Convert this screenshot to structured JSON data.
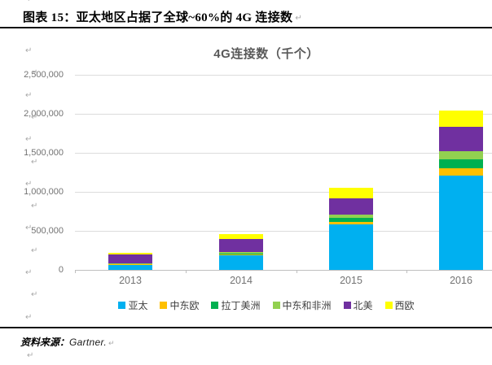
{
  "header": {
    "title": "图表 15：亚太地区占据了全球~60%的 4G 连接数"
  },
  "chart_data": {
    "type": "bar",
    "stacked": true,
    "title": "4G连接数（千个）",
    "xlabel": "",
    "ylabel": "",
    "categories": [
      "2013",
      "2014",
      "2015",
      "2016"
    ],
    "series": [
      {
        "name": "亚太",
        "color": "#00B0F0",
        "values": [
          65000,
          190000,
          580000,
          1205000
        ]
      },
      {
        "name": "中东欧",
        "color": "#FFC000",
        "values": [
          5000,
          8000,
          36000,
          95000
        ]
      },
      {
        "name": "拉丁美洲",
        "color": "#00B050",
        "values": [
          12000,
          12000,
          46000,
          118000
        ]
      },
      {
        "name": "中东和非洲",
        "color": "#92D050",
        "values": [
          6000,
          20000,
          44000,
          102000
        ]
      },
      {
        "name": "北美",
        "color": "#7030A0",
        "values": [
          110000,
          165000,
          212000,
          310000
        ]
      },
      {
        "name": "西欧",
        "color": "#FFFF00",
        "values": [
          18000,
          60000,
          130000,
          215000
        ]
      }
    ],
    "y_ticks": [
      "0",
      "500,000",
      "1,000,000",
      "1,500,000",
      "2,000,000",
      "2,500,000"
    ],
    "ylim": [
      0,
      2500000
    ],
    "grid": true,
    "legend_position": "bottom",
    "axis_text_color": "#737373",
    "gridline_color": "#dcdcdc"
  },
  "source": {
    "label": "资料来源：",
    "value": "Gartner."
  },
  "editing_marks": {
    "glyph": "↵"
  }
}
